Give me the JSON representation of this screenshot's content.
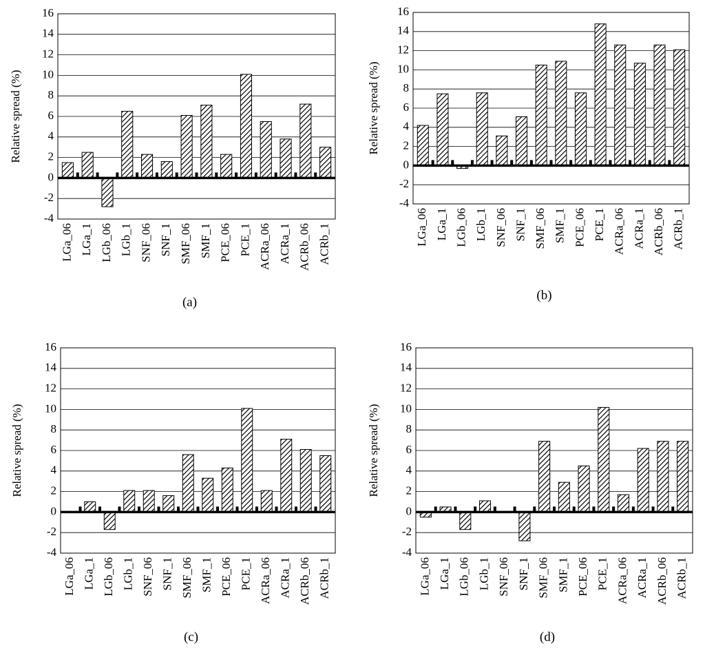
{
  "chart_data": [
    {
      "type": "bar",
      "title": "(a)",
      "ylabel": "Relative spread (%)",
      "categories": [
        "LGa_06",
        "LGa_1",
        "LGb_06",
        "LGb_1",
        "SNF_06",
        "SNF_1",
        "SMF_06",
        "SMF_1",
        "PCE_06",
        "PCE_1",
        "ACRa_06",
        "ACRa_1",
        "ACRb_06",
        "ACRb_1"
      ],
      "values": [
        1.5,
        2.5,
        -2.8,
        6.5,
        2.3,
        1.6,
        6.1,
        7.1,
        2.3,
        10.1,
        5.5,
        3.8,
        7.2,
        3.0
      ],
      "color": "#000000",
      "ylim": [
        -4,
        16
      ],
      "yticks": [
        -4,
        -2,
        0,
        2,
        4,
        6,
        8,
        10,
        12,
        14,
        16
      ],
      "grid": true
    },
    {
      "type": "bar",
      "title": "(b)",
      "ylabel": "Relative spread (%)",
      "categories": [
        "LGa_06",
        "LGa_1",
        "LGb_06",
        "LGb_1",
        "SNF_06",
        "SNF_1",
        "SMF_06",
        "SMF_1",
        "PCE_06",
        "PCE_1",
        "ACRa_06",
        "ACRa_1",
        "ACRb_06",
        "ACRb_1"
      ],
      "values": [
        4.2,
        7.5,
        -0.3,
        7.6,
        3.1,
        5.1,
        10.5,
        10.9,
        7.6,
        14.8,
        12.6,
        10.7,
        12.6,
        12.1
      ],
      "color": "#000000",
      "ylim": [
        -4,
        16
      ],
      "yticks": [
        -4,
        -2,
        0,
        2,
        4,
        6,
        8,
        10,
        12,
        14,
        16
      ],
      "grid": true
    },
    {
      "type": "bar",
      "title": "(c)",
      "ylabel": "Relative spread (%)",
      "categories": [
        "LGa_06",
        "LGa_1",
        "LGb_06",
        "LGb_1",
        "SNF_06",
        "SNF_1",
        "SMF_06",
        "SMF_1",
        "PCE_06",
        "PCE_1",
        "ACRa_06",
        "ACRa_1",
        "ACRb_06",
        "ACRb_1"
      ],
      "values": [
        0,
        1.0,
        -1.7,
        2.1,
        2.1,
        1.6,
        5.6,
        3.3,
        4.3,
        10.1,
        2.1,
        7.1,
        6.1,
        5.5
      ],
      "color": "#000000",
      "ylim": [
        -4,
        16
      ],
      "yticks": [
        -4,
        -2,
        0,
        2,
        4,
        6,
        8,
        10,
        12,
        14,
        16
      ],
      "grid": true
    },
    {
      "type": "bar",
      "title": "(d)",
      "ylabel": "Relative spread (%)",
      "categories": [
        "LGa_06",
        "LGa_1",
        "LGb_06",
        "LGb_1",
        "SNF_06",
        "SNF_1",
        "SMF_06",
        "SMF_1",
        "PCE_06",
        "PCE_1",
        "ACRa_06",
        "ACRa_1",
        "ACRb_06",
        "ACRb_1"
      ],
      "values": [
        -0.5,
        0.5,
        -1.7,
        1.1,
        0,
        -2.8,
        6.9,
        2.9,
        4.5,
        10.2,
        1.7,
        6.2,
        6.9,
        6.9
      ],
      "color": "#000000",
      "ylim": [
        -4,
        16
      ],
      "yticks": [
        -4,
        -2,
        0,
        2,
        4,
        6,
        8,
        10,
        12,
        14,
        16
      ],
      "grid": true
    }
  ]
}
